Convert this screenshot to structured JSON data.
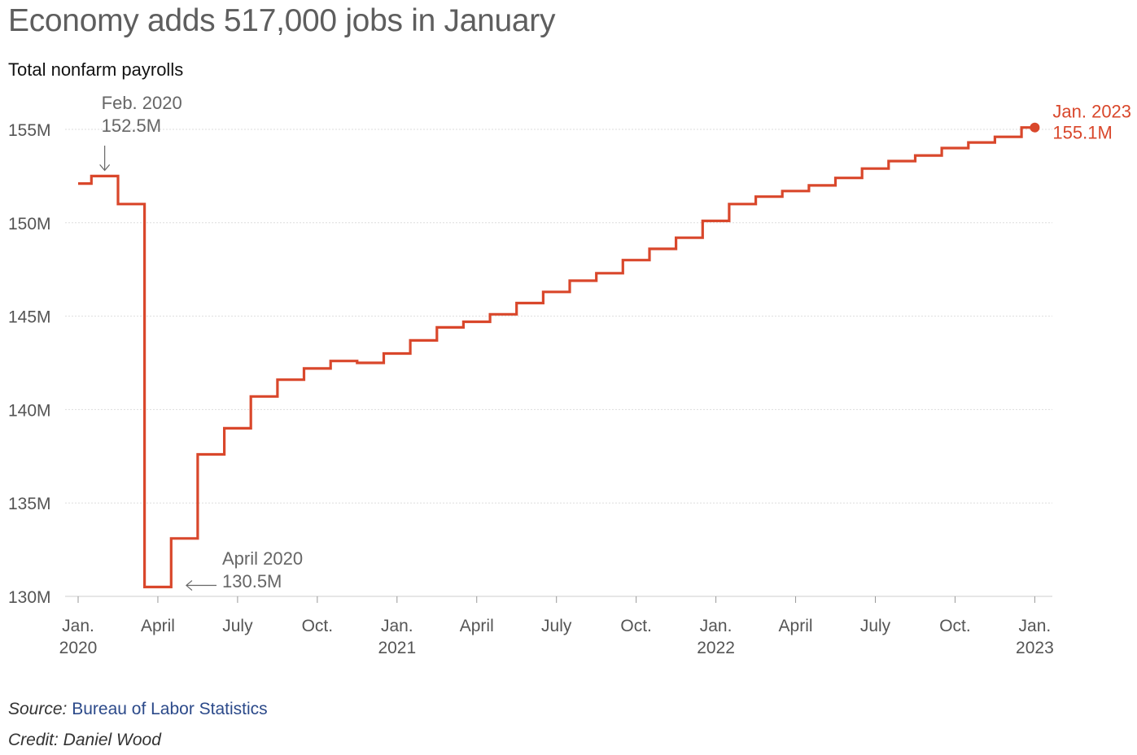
{
  "title": "Economy adds 517,000 jobs in January",
  "subtitle": "Total nonfarm payrolls",
  "colors": {
    "line": "#d9472b",
    "annotation": "#666666",
    "grid": "#dddddd"
  },
  "chart_data": {
    "type": "line",
    "step": true,
    "series": [
      {
        "dates": [
          "2020-01",
          "2020-02",
          "2020-03",
          "2020-04",
          "2020-05",
          "2020-06",
          "2020-07",
          "2020-08",
          "2020-09",
          "2020-10",
          "2020-11",
          "2020-12",
          "2021-01",
          "2021-02",
          "2021-03",
          "2021-04",
          "2021-05",
          "2021-06",
          "2021-07",
          "2021-08",
          "2021-09",
          "2021-10",
          "2021-11",
          "2021-12",
          "2022-01",
          "2022-02",
          "2022-03",
          "2022-04",
          "2022-05",
          "2022-06",
          "2022-07",
          "2022-08",
          "2022-09",
          "2022-10",
          "2022-11",
          "2022-12",
          "2023-01"
        ],
        "values": [
          152.1,
          152.5,
          151.0,
          130.5,
          133.1,
          137.6,
          139.0,
          140.7,
          141.6,
          142.2,
          142.6,
          142.5,
          143.0,
          143.7,
          144.4,
          144.7,
          145.1,
          145.7,
          146.3,
          146.9,
          147.3,
          148.0,
          148.6,
          149.2,
          150.1,
          151.0,
          151.4,
          151.7,
          152.0,
          152.4,
          152.9,
          153.3,
          153.6,
          154.0,
          154.3,
          154.6,
          155.1
        ]
      }
    ],
    "ylim": [
      130,
      155
    ],
    "yticks": [
      155,
      150,
      145,
      140,
      135,
      130
    ],
    "ytick_labels": [
      "155M",
      "150M",
      "145M",
      "140M",
      "135M",
      "130M"
    ],
    "xticks": [
      {
        "date": "2020-01",
        "line1": "Jan.",
        "line2": "2020"
      },
      {
        "date": "2020-04",
        "line1": "April",
        "line2": ""
      },
      {
        "date": "2020-07",
        "line1": "July",
        "line2": ""
      },
      {
        "date": "2020-10",
        "line1": "Oct.",
        "line2": ""
      },
      {
        "date": "2021-01",
        "line1": "Jan.",
        "line2": "2021"
      },
      {
        "date": "2021-04",
        "line1": "April",
        "line2": ""
      },
      {
        "date": "2021-07",
        "line1": "July",
        "line2": ""
      },
      {
        "date": "2021-10",
        "line1": "Oct.",
        "line2": ""
      },
      {
        "date": "2022-01",
        "line1": "Jan.",
        "line2": "2022"
      },
      {
        "date": "2022-04",
        "line1": "April",
        "line2": ""
      },
      {
        "date": "2022-07",
        "line1": "July",
        "line2": ""
      },
      {
        "date": "2022-10",
        "line1": "Oct.",
        "line2": ""
      },
      {
        "date": "2023-01",
        "line1": "Jan.",
        "line2": "2023"
      }
    ],
    "grid": true,
    "annotations": [
      {
        "date": "2020-02",
        "line1": "Feb. 2020",
        "line2": "152.5M",
        "style": "down-arrow"
      },
      {
        "date": "2020-04",
        "line1": "April 2020",
        "line2": "130.5M",
        "style": "left-arrow"
      },
      {
        "date": "2023-01",
        "line1": "Jan. 2023",
        "line2": "155.1M",
        "style": "end-dot"
      }
    ]
  },
  "footer": {
    "source_label": "Source:",
    "source_text": "Bureau of Labor Statistics",
    "credit": "Credit: Daniel Wood"
  }
}
